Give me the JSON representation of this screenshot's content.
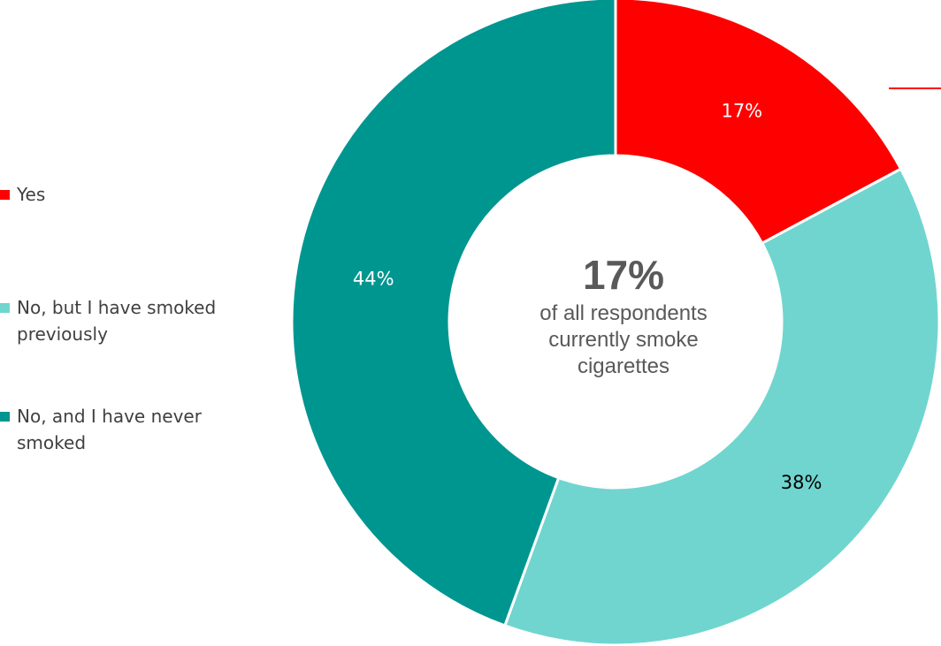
{
  "chart_data": {
    "type": "pie",
    "donut": true,
    "categories": [
      "Yes",
      "No, but I have smoked previously",
      "No, and I have never smoked"
    ],
    "values": [
      17,
      38,
      44
    ],
    "labels": [
      "17%",
      "38%",
      "44%"
    ],
    "colors": [
      "#ff0000",
      "#70d5cf",
      "#009690"
    ],
    "label_colors": [
      "#ffffff",
      "#000000",
      "#ffffff"
    ],
    "legend_position": "left",
    "center": {
      "value": "17%",
      "caption": "of all respondents currently smoke cigarettes"
    }
  }
}
